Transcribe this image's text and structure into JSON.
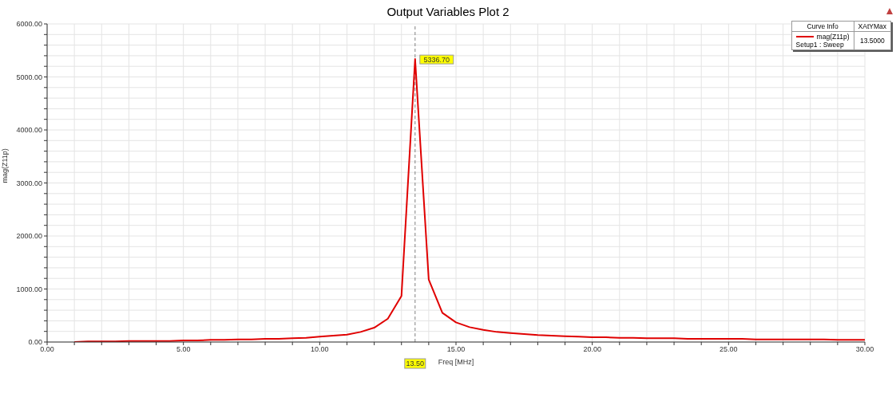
{
  "chart_data": {
    "type": "line",
    "title": "Output Variables Plot 2",
    "xlabel": "Freq [MHz]",
    "ylabel": "mag(Z11p)",
    "x": [
      1,
      1.5,
      2,
      2.5,
      3,
      3.5,
      4,
      4.5,
      5,
      5.5,
      6,
      6.5,
      7,
      7.5,
      8,
      8.5,
      9,
      9.5,
      10,
      10.5,
      11,
      11.5,
      12,
      12.5,
      13,
      13.5,
      14,
      14.5,
      15,
      15.5,
      16,
      16.5,
      17,
      17.5,
      18,
      18.5,
      19,
      19.5,
      20,
      20.5,
      21,
      21.5,
      22,
      22.5,
      23,
      23.5,
      24,
      24.5,
      25,
      25.5,
      26,
      26.5,
      27,
      27.5,
      28,
      28.5,
      29,
      29.5,
      30
    ],
    "series": [
      {
        "name": "mag(Z11p)",
        "color": "#e00000",
        "values": [
          0,
          10,
          10,
          10,
          20,
          20,
          20,
          20,
          30,
          30,
          40,
          40,
          50,
          50,
          60,
          60,
          70,
          80,
          100,
          120,
          140,
          190,
          270,
          440,
          870,
          5336.7,
          1180,
          550,
          370,
          280,
          230,
          190,
          170,
          150,
          130,
          120,
          110,
          100,
          90,
          90,
          80,
          80,
          70,
          70,
          70,
          60,
          60,
          60,
          60,
          60,
          50,
          50,
          50,
          50,
          50,
          50,
          40,
          40,
          40
        ]
      }
    ],
    "xlim": [
      0,
      30
    ],
    "xticks": [
      {
        "value": 0,
        "label": "0.00"
      },
      {
        "value": 1,
        "label": null
      },
      {
        "value": 2,
        "label": null
      },
      {
        "value": 3,
        "label": null
      },
      {
        "value": 4,
        "label": null
      },
      {
        "value": 5,
        "label": "5.00"
      },
      {
        "value": 6,
        "label": null
      },
      {
        "value": 7,
        "label": null
      },
      {
        "value": 8,
        "label": null
      },
      {
        "value": 9,
        "label": null
      },
      {
        "value": 10,
        "label": "10.00"
      },
      {
        "value": 11,
        "label": null
      },
      {
        "value": 12,
        "label": null
      },
      {
        "value": 13,
        "label": null
      },
      {
        "value": 14,
        "label": null
      },
      {
        "value": 15,
        "label": "15.00"
      },
      {
        "value": 16,
        "label": null
      },
      {
        "value": 17,
        "label": null
      },
      {
        "value": 18,
        "label": null
      },
      {
        "value": 19,
        "label": null
      },
      {
        "value": 20,
        "label": "20.00"
      },
      {
        "value": 21,
        "label": null
      },
      {
        "value": 22,
        "label": null
      },
      {
        "value": 23,
        "label": null
      },
      {
        "value": 24,
        "label": null
      },
      {
        "value": 25,
        "label": "25.00"
      },
      {
        "value": 26,
        "label": null
      },
      {
        "value": 27,
        "label": null
      },
      {
        "value": 28,
        "label": null
      },
      {
        "value": 29,
        "label": null
      },
      {
        "value": 30,
        "label": "30.00"
      }
    ],
    "ylim": [
      0,
      6000
    ],
    "yticks": [
      {
        "value": 0,
        "label": "0.00"
      },
      {
        "value": 200,
        "label": null
      },
      {
        "value": 400,
        "label": null
      },
      {
        "value": 600,
        "label": null
      },
      {
        "value": 800,
        "label": null
      },
      {
        "value": 1000,
        "label": "1000.00"
      },
      {
        "value": 1200,
        "label": null
      },
      {
        "value": 1400,
        "label": null
      },
      {
        "value": 1600,
        "label": null
      },
      {
        "value": 1800,
        "label": null
      },
      {
        "value": 2000,
        "label": "2000.00"
      },
      {
        "value": 2200,
        "label": null
      },
      {
        "value": 2400,
        "label": null
      },
      {
        "value": 2600,
        "label": null
      },
      {
        "value": 2800,
        "label": null
      },
      {
        "value": 3000,
        "label": "3000.00"
      },
      {
        "value": 3200,
        "label": null
      },
      {
        "value": 3400,
        "label": null
      },
      {
        "value": 3600,
        "label": null
      },
      {
        "value": 3800,
        "label": null
      },
      {
        "value": 4000,
        "label": "4000.00"
      },
      {
        "value": 4200,
        "label": null
      },
      {
        "value": 4400,
        "label": null
      },
      {
        "value": 4600,
        "label": null
      },
      {
        "value": 4800,
        "label": null
      },
      {
        "value": 5000,
        "label": "5000.00"
      },
      {
        "value": 5200,
        "label": null
      },
      {
        "value": 5400,
        "label": null
      },
      {
        "value": 5600,
        "label": null
      },
      {
        "value": 5800,
        "label": null
      },
      {
        "value": 6000,
        "label": "6000.00"
      }
    ],
    "grid": true,
    "legend": "top right",
    "marker": "none",
    "line_style": "solid",
    "ref_lines": [
      {
        "axis": "x",
        "value": 13.5,
        "label": "13.50",
        "color": "#808080",
        "line_style": "dashed"
      }
    ],
    "annotations": [
      {
        "text": "5336.70",
        "x": 13.5,
        "y": 5336.7
      },
      "Curve Info",
      "XAtYMax",
      "Setup1 : Sweep",
      "13.5000"
    ]
  }
}
